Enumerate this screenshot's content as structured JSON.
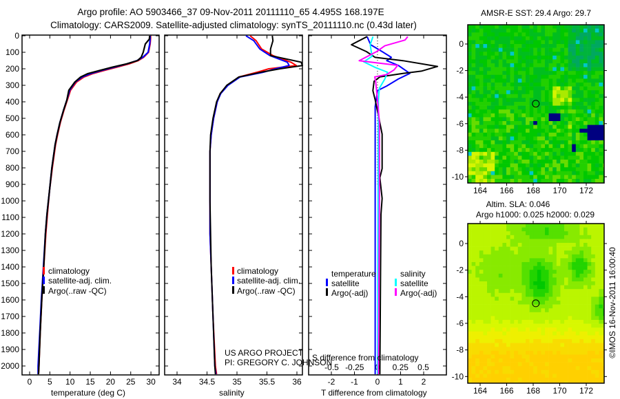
{
  "title": {
    "line1": "Argo profile: AO 5903466_37 09-Nov-2011 20111110_65 4.495S 168.197E",
    "line2": "Climatology: CARS2009. Satellite-adjusted climatology: synTS_20111110.nc (0.43d later)"
  },
  "credits": {
    "project": "US ARGO PROJECT",
    "pi": "PI: GREGORY C. JOHNSON",
    "imos": "©IMOS 16-Nov-2011 16:00:40"
  },
  "colors": {
    "climatology": "#ff0000",
    "satellite": "#0000ff",
    "argo": "#000000",
    "sal_satellite": "#00ffff",
    "sal_argo": "#ff00ff"
  },
  "chart_data": [
    {
      "type": "line",
      "name": "temperature-profile",
      "xlabel": "temperature (deg C)",
      "xlim": [
        -1.8,
        32
      ],
      "xticks": [
        0,
        5,
        10,
        15,
        20,
        25,
        30
      ],
      "ylim": [
        2060,
        0
      ],
      "yticks": [
        0,
        100,
        200,
        300,
        400,
        500,
        600,
        700,
        800,
        900,
        1000,
        1100,
        1200,
        1300,
        1400,
        1500,
        1600,
        1700,
        1800,
        1900,
        2000
      ],
      "legend": [
        "climatology",
        "satellite-adj. clim.",
        "Argo(..raw -QC)"
      ],
      "depth": [
        0,
        20,
        50,
        100,
        130,
        150,
        170,
        190,
        210,
        230,
        250,
        280,
        330,
        390,
        450,
        525,
        600,
        660,
        800,
        940,
        1080,
        1200,
        1400,
        1600,
        1800,
        2000,
        2050
      ],
      "series": [
        {
          "name": "climatology",
          "values": [
            29.9,
            29.9,
            29.8,
            29.4,
            28.2,
            26.9,
            24.6,
            21.6,
            18.4,
            15.5,
            13.4,
            11.6,
            10.1,
            9.3,
            8.5,
            7.6,
            6.9,
            6.4,
            5.6,
            4.9,
            4.4,
            4.0,
            3.5,
            3.0,
            2.6,
            2.3,
            2.2
          ]
        },
        {
          "name": "satellite-adj. clim.",
          "values": [
            29.8,
            29.8,
            29.7,
            29.3,
            28.0,
            26.6,
            24.1,
            21.0,
            17.8,
            15.0,
            13.0,
            11.3,
            9.9,
            9.2,
            8.4,
            7.5,
            6.8,
            6.3,
            5.5,
            4.9,
            4.3,
            3.9,
            3.4,
            2.9,
            2.5,
            2.1,
            2.1
          ]
        },
        {
          "name": "Argo(..raw -QC)",
          "values": [
            29.7,
            29.6,
            28.6,
            28.1,
            27.6,
            26.7,
            24.0,
            20.5,
            17.3,
            14.3,
            12.6,
            11.2,
            9.7,
            9.2,
            8.4,
            7.5,
            6.8,
            6.3,
            5.5,
            4.9,
            4.3,
            3.9,
            3.5,
            3.0,
            2.6,
            2.3,
            2.2
          ]
        }
      ]
    },
    {
      "type": "line",
      "name": "salinity-profile",
      "xlabel": "salinity",
      "xlim": [
        33.8,
        36.1
      ],
      "xticks": [
        34,
        34.5,
        35,
        35.5,
        36
      ],
      "xtick_labels": [
        "34",
        "34.5",
        "35",
        "35.5",
        "36"
      ],
      "ylim": [
        2060,
        0
      ],
      "legend": [
        "climatology",
        "satellite-adj. clim.",
        "Argo(..raw -QC)"
      ],
      "depth": [
        0,
        30,
        80,
        120,
        160,
        180,
        200,
        220,
        250,
        300,
        350,
        400,
        500,
        600,
        700,
        1000,
        1200,
        1400,
        1700,
        2000,
        2050
      ],
      "series": [
        {
          "name": "climatology",
          "values": [
            35.22,
            35.32,
            35.41,
            35.6,
            35.9,
            35.99,
            35.53,
            35.34,
            35.03,
            34.84,
            34.72,
            34.67,
            34.61,
            34.57,
            34.55,
            34.55,
            34.55,
            34.57,
            34.6,
            34.64,
            34.66
          ]
        },
        {
          "name": "satellite-adj. clim.",
          "values": [
            35.15,
            35.28,
            35.38,
            35.55,
            35.84,
            35.87,
            35.64,
            35.45,
            35.05,
            34.85,
            34.73,
            34.67,
            34.61,
            34.57,
            34.55,
            34.55,
            34.55,
            34.57,
            34.6,
            34.63,
            34.65
          ]
        },
        {
          "name": "Argo(..raw -QC)",
          "values": [
            35.59,
            35.6,
            35.56,
            35.56,
            36.07,
            36.1,
            35.72,
            35.41,
            35.03,
            34.83,
            34.72,
            34.66,
            34.6,
            34.56,
            34.55,
            34.55,
            34.56,
            34.57,
            34.6,
            34.63,
            34.64
          ]
        }
      ]
    },
    {
      "type": "line",
      "name": "difference-profile",
      "xlabel": "T difference from climatology",
      "xlabel_secondary": "S difference from climatology",
      "xlim": [
        -3,
        3
      ],
      "xticks": [
        -2,
        -1,
        0,
        1,
        2
      ],
      "secondary_xticks": [
        -0.5,
        -0.25,
        0,
        0.25,
        0.5
      ],
      "legend_temperature": {
        "heading": "temperature",
        "items": [
          "satellite",
          "Argo(-adj)"
        ]
      },
      "legend_salinity": {
        "heading": "salinity",
        "items": [
          "satellite",
          "Argo(-adj)"
        ]
      },
      "series": [
        {
          "name": "temperature satellite",
          "axis": "T",
          "depth": [
            5,
            54,
            96,
            131,
            151,
            179,
            228,
            262,
            304,
            332,
            429,
            1000,
            2050
          ],
          "values": [
            -0.45,
            -0.3,
            0.2,
            0.6,
            0.4,
            0.9,
            1.4,
            0.9,
            0.4,
            0.0,
            -0.1,
            -0.1,
            -0.1
          ]
        },
        {
          "name": "temperature Argo(-adj)",
          "axis": "T",
          "depth": [
            5,
            54,
            96,
            131,
            151,
            186,
            214,
            228,
            249,
            276,
            332,
            388,
            498,
            596,
            804,
            860,
            985,
            1082,
            2050
          ],
          "values": [
            -0.45,
            -1.13,
            -0.48,
            -0.1,
            1.1,
            2.6,
            1.9,
            1.1,
            0.1,
            -0.15,
            -0.2,
            -0.1,
            0.06,
            0.2,
            0.2,
            0.1,
            0.2,
            0.15,
            0.1
          ]
        },
        {
          "name": "salinity satellite",
          "axis": "S",
          "depth": [
            5,
            54,
            124,
            158,
            193,
            221,
            262,
            318,
            388,
            2050
          ],
          "values": [
            -0.05,
            -0.08,
            -0.06,
            -0.15,
            -0.02,
            0.11,
            0.08,
            0.02,
            0.01,
            0.0
          ]
        },
        {
          "name": "salinity Argo(-adj)",
          "axis": "S",
          "depth": [
            5,
            26,
            61,
            96,
            151,
            179,
            207,
            235,
            249,
            276,
            388,
            525,
            985,
            2050
          ],
          "values": [
            0.33,
            0.3,
            0.08,
            -0.01,
            -0.2,
            0.22,
            0.18,
            0.1,
            -0.03,
            -0.02,
            0.0,
            0.02,
            0.02,
            0.01
          ]
        }
      ]
    },
    {
      "type": "heatmap",
      "name": "sst-map",
      "title": "AMSR-E SST: 29.4 Argo: 29.7",
      "xticks": [
        164,
        166,
        168,
        170,
        172
      ],
      "yticks": [
        0,
        -2,
        -4,
        -6,
        -8,
        -10
      ],
      "xlim": [
        163.07,
        173.35
      ],
      "ylim": [
        -10.47,
        1.45
      ],
      "marker": {
        "lon": 168.197,
        "lat": -4.495
      }
    },
    {
      "type": "heatmap",
      "name": "sla-map",
      "title_line1": "Altim. SLA: 0.046",
      "title_line2": "Argo h1000: 0.025 h2000: 0.029",
      "xticks": [
        164,
        166,
        168,
        170,
        172
      ],
      "yticks": [
        0,
        -2,
        -4,
        -6,
        -8,
        -10
      ],
      "xlim": [
        163.07,
        173.35
      ],
      "ylim": [
        -10.5,
        1.5
      ],
      "marker": {
        "lon": 168.197,
        "lat": -4.495
      }
    }
  ]
}
